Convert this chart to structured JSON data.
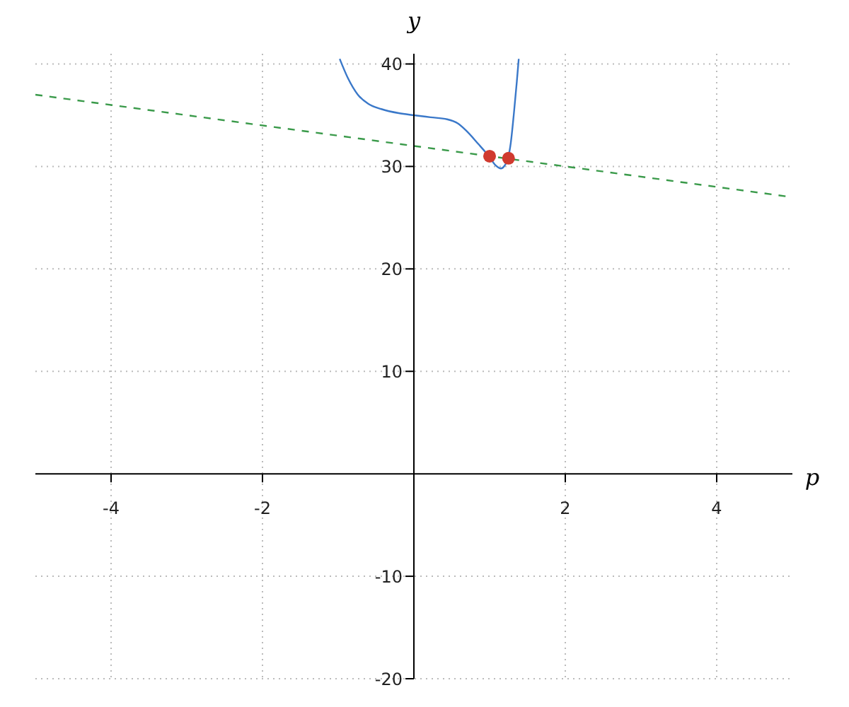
{
  "chart_data": {
    "type": "line",
    "xlabel": "p",
    "ylabel": "y",
    "xlim": [
      -5,
      5
    ],
    "ylim": [
      -20,
      41
    ],
    "xticks": [
      -4,
      -2,
      2,
      4
    ],
    "yticks": [
      -20,
      -10,
      10,
      20,
      30,
      40
    ],
    "grid": true,
    "series": [
      {
        "color": "#3a78c9",
        "marker": "none",
        "line_style": "solid",
        "x": [
          -0.98,
          -0.87,
          -0.74,
          -0.6,
          -0.43,
          -0.2,
          0,
          0.22,
          0.44,
          0.58,
          0.69,
          0.85,
          0.99,
          1.08,
          1.15,
          1.2,
          1.24,
          1.28,
          1.32,
          1.36,
          1.385
        ],
        "values": [
          40.5,
          38.6,
          37.0,
          36.1,
          35.6,
          35.2,
          35.0,
          34.8,
          34.6,
          34.2,
          33.5,
          32.2,
          31.0,
          30.1,
          29.8,
          30.1,
          30.7,
          32.3,
          35.1,
          38.3,
          40.5
        ]
      },
      {
        "color": "#3a9a4a",
        "marker": "none",
        "line_style": "dashed",
        "x": [
          -5,
          5
        ],
        "values": [
          37,
          27
        ]
      },
      {
        "type": "scatter",
        "color": "#d03a2f",
        "marker": "circle",
        "x": [
          1,
          1.25
        ],
        "values": [
          31,
          30.8
        ]
      }
    ]
  }
}
